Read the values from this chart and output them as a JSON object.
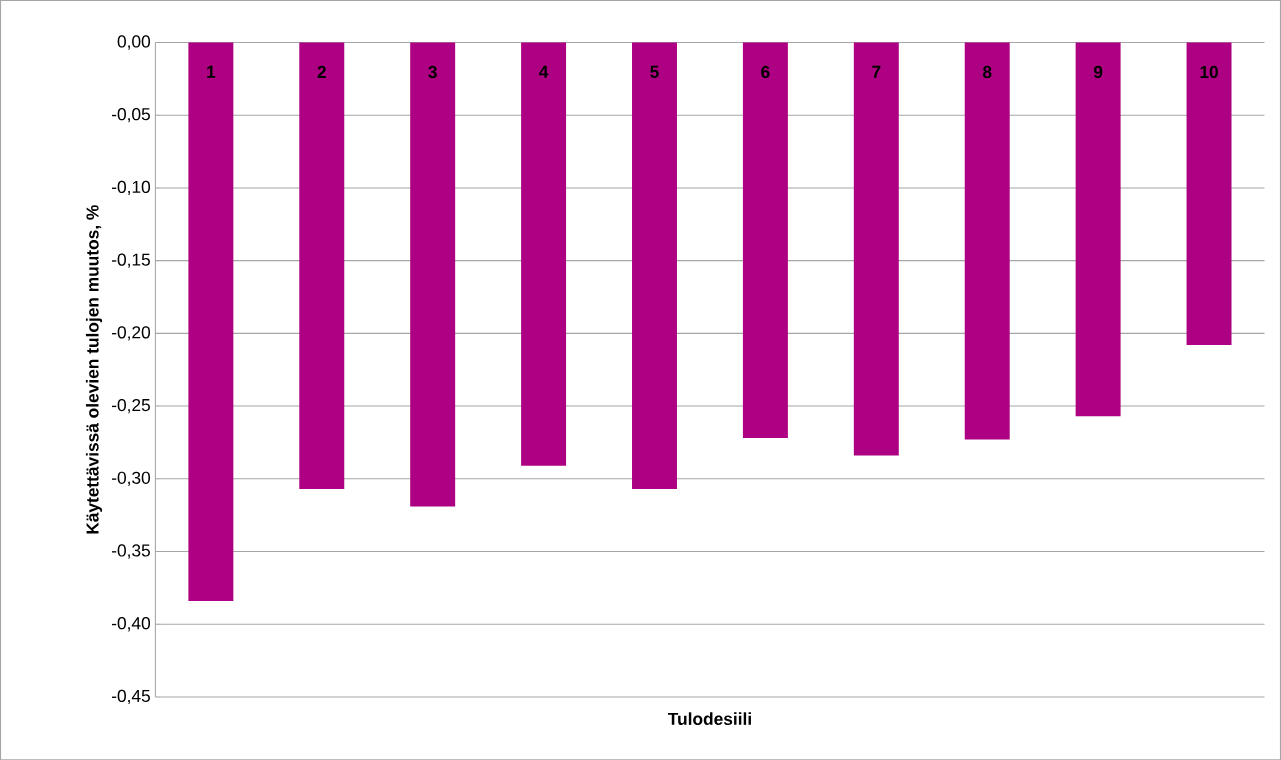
{
  "chart_data": {
    "type": "bar",
    "xlabel": "Tulodesiili",
    "ylabel": "Käytettävissä olevien tulojen muutos, %",
    "categories": [
      "1",
      "2",
      "3",
      "4",
      "5",
      "6",
      "7",
      "8",
      "9",
      "10"
    ],
    "values": [
      -0.384,
      -0.307,
      -0.319,
      -0.291,
      -0.307,
      -0.272,
      -0.284,
      -0.273,
      -0.257,
      -0.208
    ],
    "color": "#ae0082",
    "ylim": [
      -0.45,
      0
    ],
    "yticks": [
      {
        "value": -0.45,
        "label": "-0,45"
      },
      {
        "value": -0.4,
        "label": "-0,40"
      },
      {
        "value": -0.35,
        "label": "-0,35"
      },
      {
        "value": -0.3,
        "label": "-0,30"
      },
      {
        "value": -0.25,
        "label": "-0,25"
      },
      {
        "value": -0.2,
        "label": "-0,20"
      },
      {
        "value": -0.15,
        "label": "-0,15"
      },
      {
        "value": -0.1,
        "label": "-0,10"
      },
      {
        "value": -0.05,
        "label": "-0,05"
      },
      {
        "value": 0,
        "label": "0,00"
      }
    ],
    "grid": "y"
  }
}
